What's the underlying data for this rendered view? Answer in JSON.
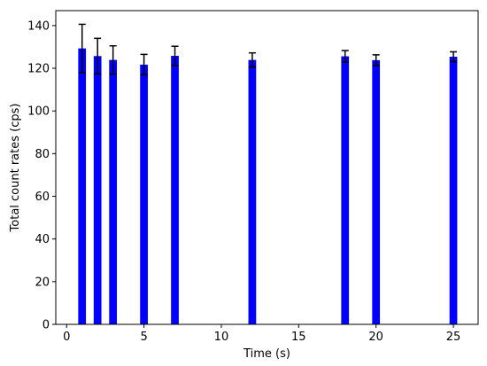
{
  "chart_data": {
    "type": "bar",
    "xlabel": "Time (s)",
    "ylabel": "Total count rates (cps)",
    "xlim": [
      -0.7,
      26.6
    ],
    "ylim": [
      0,
      147
    ],
    "xticks": [
      0,
      5,
      10,
      15,
      20,
      25
    ],
    "yticks": [
      0,
      20,
      40,
      60,
      80,
      100,
      120,
      140
    ],
    "grid": false,
    "bar_color": "#0000ff",
    "error_color": "#000000",
    "bar_width": 0.5,
    "series": [
      {
        "x": [
          1,
          2,
          3,
          5,
          7,
          12,
          18,
          20,
          25
        ],
        "values": [
          129.3,
          125.7,
          123.9,
          121.7,
          125.8,
          123.9,
          125.6,
          123.8,
          125.4
        ],
        "errors": [
          11.3,
          8.3,
          6.6,
          4.8,
          4.5,
          3.3,
          2.7,
          2.5,
          2.3
        ]
      }
    ]
  }
}
